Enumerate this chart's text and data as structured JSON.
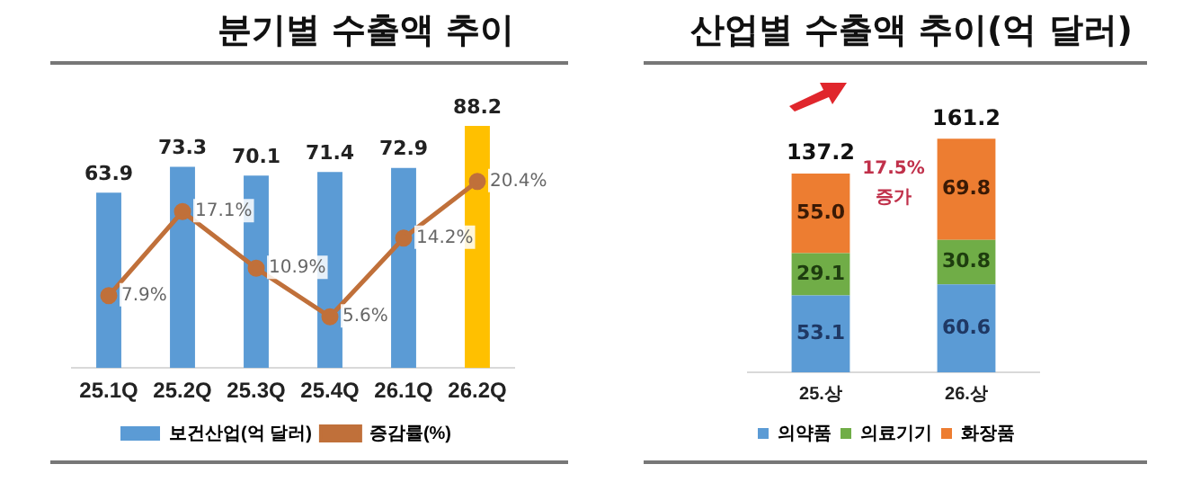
{
  "chart_data": [
    {
      "type": "bar",
      "title": "분기별 수출액 추이",
      "categories": [
        "25.1Q",
        "25.2Q",
        "25.3Q",
        "25.4Q",
        "26.1Q",
        "26.2Q"
      ],
      "series": [
        {
          "name": "보건산업(억 달러)",
          "type": "bar",
          "color": "#5b9bd5",
          "colors": [
            "#5b9bd5",
            "#5b9bd5",
            "#5b9bd5",
            "#5b9bd5",
            "#5b9bd5",
            "#ffc000"
          ],
          "values": [
            63.9,
            73.3,
            70.1,
            71.4,
            72.9,
            88.2
          ],
          "value_labels": [
            "63.9",
            "73.3",
            "70.1",
            "71.4",
            "72.9",
            "88.2"
          ]
        },
        {
          "name": "증감률(%)",
          "type": "line",
          "axis": "y2",
          "color": "#c0703a",
          "values": [
            7.9,
            17.1,
            10.9,
            5.6,
            14.2,
            20.4
          ],
          "value_labels": [
            "7.9%",
            "17.1%",
            "10.9%",
            "5.6%",
            "14.2%",
            "20.4%"
          ]
        }
      ],
      "tick_labels": "x",
      "legend": "bottom",
      "marker": "circle",
      "grid": false
    },
    {
      "type": "bar",
      "title": "산업별 수출액 추이(억 달러)",
      "categories": [
        "25.상",
        "26.상"
      ],
      "stacked": true,
      "series": [
        {
          "name": "의약품",
          "color": "#5b9bd5",
          "values": [
            53.1,
            60.6
          ]
        },
        {
          "name": "의료기기",
          "color": "#70ad47",
          "values": [
            29.1,
            30.8
          ]
        },
        {
          "name": "화장품",
          "color": "#ed7d31",
          "values": [
            55.0,
            69.8
          ],
          "value_labels": [
            "55.0",
            "69.8"
          ]
        }
      ],
      "tick_labels": "x",
      "data_labels": true,
      "totals": [
        "137.2",
        "161.2"
      ],
      "annotations": [
        "17.5% 증가"
      ],
      "legend": "bottom",
      "grid": false
    }
  ]
}
